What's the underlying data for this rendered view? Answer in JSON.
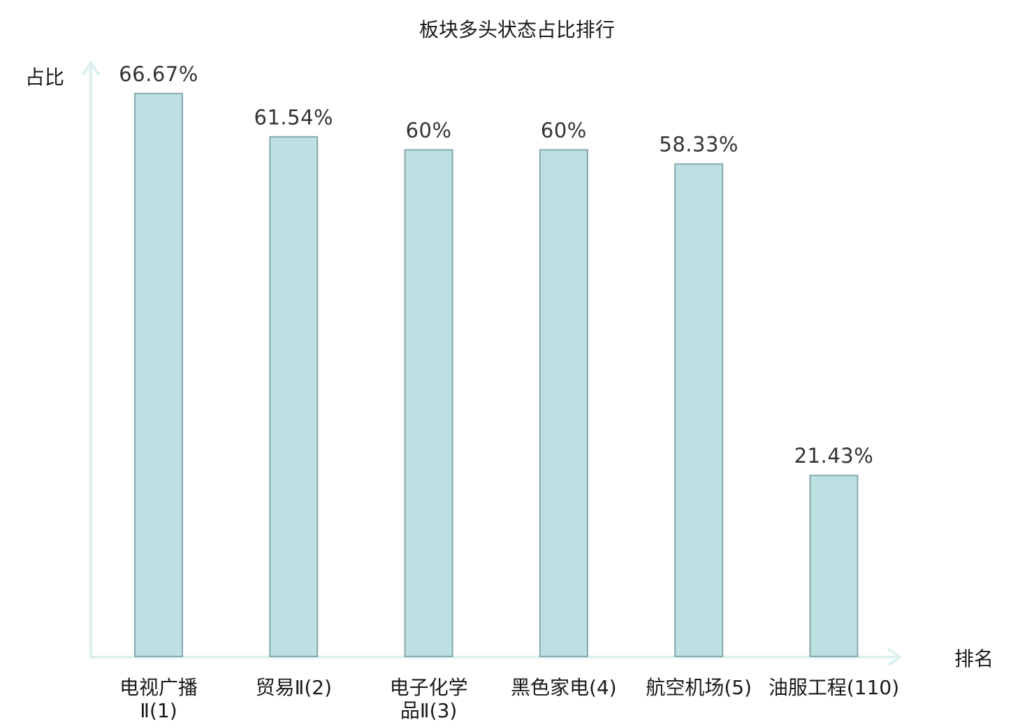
{
  "chart_data": {
    "type": "bar",
    "title": "板块多头状态占比排行",
    "ylabel": "占比",
    "xlabel": "排名",
    "ylim": [
      0,
      70.3
    ],
    "grid": false,
    "categories": [
      [
        "电视广播",
        "Ⅱ(1)"
      ],
      [
        "贸易Ⅱ(2)"
      ],
      [
        "电子化学",
        "品Ⅱ(3)"
      ],
      [
        "黑色家电(4)"
      ],
      [
        "航空机场(5)"
      ],
      [
        "油服工程(110)"
      ]
    ],
    "values": [
      66.67,
      61.54,
      60,
      60,
      58.33,
      21.43
    ],
    "value_labels": [
      "66.67%",
      "61.54%",
      "60%",
      "60%",
      "58.33%",
      "21.43%"
    ],
    "highlight_index": 5,
    "colors": {
      "bar_fill": "#bde0e3",
      "bar_stroke": "#86a8ad",
      "axis": "#dcf1ee",
      "highlight_label": "#e8141c",
      "value_label": "#333333",
      "text": "#1a1a1a"
    }
  }
}
